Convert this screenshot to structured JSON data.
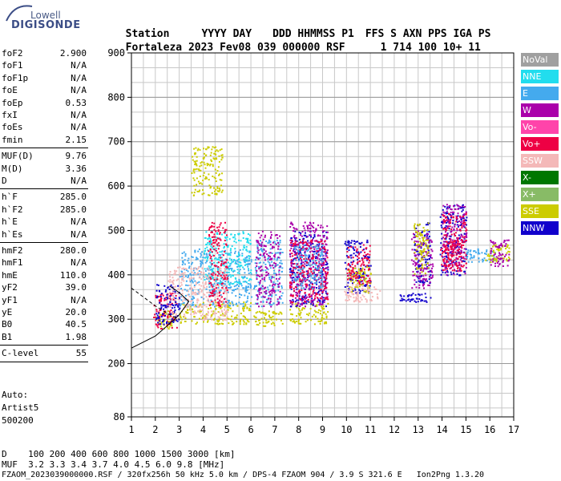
{
  "logo": {
    "brand": "Lowell",
    "product": "DIGISONDE"
  },
  "header": {
    "labels": [
      "Station",
      "YYYY",
      "DAY",
      "DDD",
      "HHMMSS",
      "P1",
      "FFS",
      "S",
      "AXN",
      "PPS",
      "IGA",
      "PS"
    ],
    "values": [
      "Fortaleza",
      "2023",
      "Fev08",
      "039",
      "000000",
      "RSF",
      "1",
      "714",
      "100",
      "10+",
      "11"
    ]
  },
  "params_group1": [
    {
      "key": "foF2",
      "value": "2.900"
    },
    {
      "key": "foF1",
      "value": "N/A"
    },
    {
      "key": "foF1p",
      "value": "N/A"
    },
    {
      "key": "foE",
      "value": "N/A"
    },
    {
      "key": "foEp",
      "value": "0.53"
    },
    {
      "key": "fxI",
      "value": "N/A"
    },
    {
      "key": "foEs",
      "value": "N/A"
    },
    {
      "key": "fmin",
      "value": "2.15"
    }
  ],
  "params_group2": [
    {
      "key": "MUF(D)",
      "value": "9.76"
    },
    {
      "key": "M(D)",
      "value": "3.36"
    },
    {
      "key": "D",
      "value": "N/A"
    }
  ],
  "params_group3": [
    {
      "key": "h`F",
      "value": "285.0"
    },
    {
      "key": "h`F2",
      "value": "285.0"
    },
    {
      "key": "h`E",
      "value": "N/A"
    },
    {
      "key": "h`Es",
      "value": "N/A"
    }
  ],
  "params_group4": [
    {
      "key": "hmF2",
      "value": "280.0"
    },
    {
      "key": "hmF1",
      "value": "N/A"
    },
    {
      "key": "hmE",
      "value": "110.0"
    },
    {
      "key": "yF2",
      "value": "39.0"
    },
    {
      "key": "yF1",
      "value": "N/A"
    },
    {
      "key": "yE",
      "value": "20.0"
    },
    {
      "key": "B0",
      "value": "40.5"
    },
    {
      "key": "B1",
      "value": "1.98"
    }
  ],
  "params_group5": [
    {
      "key": "C-level",
      "value": "55"
    }
  ],
  "autoscaling": {
    "line1": "Auto:",
    "line2": "Artist5",
    "line3": "500200"
  },
  "legend": [
    {
      "label": "NoVal",
      "color": "#a0a0a0"
    },
    {
      "label": "NNE",
      "color": "#22ddee"
    },
    {
      "label": "E",
      "color": "#44aaee"
    },
    {
      "label": "W",
      "color": "#aa00aa"
    },
    {
      "label": "Vo-",
      "color": "#ff44aa"
    },
    {
      "label": "Vo+",
      "color": "#ee0044"
    },
    {
      "label": "SSW",
      "color": "#f4b8b8"
    },
    {
      "label": "X-",
      "color": "#007700"
    },
    {
      "label": "X+",
      "color": "#88bb66"
    },
    {
      "label": "SSE",
      "color": "#cccc00"
    },
    {
      "label": "NNW",
      "color": "#1100cc"
    }
  ],
  "footer": {
    "d_label": "D",
    "d_values": [
      "100",
      "200",
      "400",
      "600",
      "800",
      "1000",
      "1500",
      "3000"
    ],
    "d_unit": "[km]",
    "muf_label": "MUF",
    "muf_values": [
      "3.2",
      "3.3",
      "3.4",
      "3.7",
      "4.0",
      "4.5",
      "6.0",
      "9.8"
    ],
    "muf_unit": "[MHz]",
    "info_line": "FZAOM_2023039000000.RSF / 320fx256h 50 kHz 5.0 km / DPS-4 FZAOM 904 / 3.9 S 321.6 E   Ion2Png 1.3.20"
  },
  "chart_data": {
    "type": "scatter",
    "xlim": [
      1,
      17
    ],
    "ylim": [
      80,
      900
    ],
    "x_ticks": [
      "1",
      "2",
      "3",
      "4",
      "5",
      "6",
      "7",
      "8",
      "9",
      "10",
      "11",
      "12",
      "13",
      "14",
      "15",
      "16",
      "17"
    ],
    "y_ticks": [
      "900",
      "800",
      "700",
      "600",
      "500",
      "400",
      "300",
      "200",
      "80"
    ],
    "y_tick_values": [
      900,
      800,
      700,
      600,
      500,
      400,
      300,
      200,
      80
    ],
    "grid": true,
    "clusters": [
      {
        "cls": "SSE",
        "x": [
          2.0,
          2.8
        ],
        "y": [
          280,
          320
        ]
      },
      {
        "cls": "Vo+",
        "x": [
          1.9,
          2.9
        ],
        "y": [
          280,
          360
        ]
      },
      {
        "cls": "NNW",
        "x": [
          2.0,
          3.0
        ],
        "y": [
          290,
          380
        ]
      },
      {
        "cls": "SSE",
        "x": [
          3.0,
          6.0
        ],
        "y": [
          290,
          340
        ]
      },
      {
        "cls": "E",
        "x": [
          3.0,
          6.0
        ],
        "y": [
          330,
          460
        ]
      },
      {
        "cls": "NNE",
        "x": [
          4.0,
          6.0
        ],
        "y": [
          380,
          500
        ]
      },
      {
        "cls": "SSE",
        "x": [
          3.5,
          4.8
        ],
        "y": [
          580,
          690
        ]
      },
      {
        "cls": "SSW",
        "x": [
          2.5,
          5.0
        ],
        "y": [
          300,
          420
        ]
      },
      {
        "cls": "Vo+",
        "x": [
          4.2,
          5.0
        ],
        "y": [
          330,
          520
        ]
      },
      {
        "cls": "SSE",
        "x": [
          6.1,
          7.3
        ],
        "y": [
          285,
          320
        ]
      },
      {
        "cls": "E",
        "x": [
          6.1,
          7.3
        ],
        "y": [
          330,
          480
        ]
      },
      {
        "cls": "W",
        "x": [
          6.2,
          7.2
        ],
        "y": [
          330,
          500
        ]
      },
      {
        "cls": "SSE",
        "x": [
          7.6,
          9.2
        ],
        "y": [
          290,
          340
        ]
      },
      {
        "cls": "NNW",
        "x": [
          7.6,
          9.2
        ],
        "y": [
          330,
          500
        ]
      },
      {
        "cls": "W",
        "x": [
          7.6,
          9.2
        ],
        "y": [
          330,
          520
        ]
      },
      {
        "cls": "Vo+",
        "x": [
          7.6,
          9.2
        ],
        "y": [
          340,
          480
        ]
      },
      {
        "cls": "E",
        "x": [
          7.8,
          9.0
        ],
        "y": [
          370,
          470
        ]
      },
      {
        "cls": "NNW",
        "x": [
          9.9,
          11.0
        ],
        "y": [
          360,
          480
        ]
      },
      {
        "cls": "SSE",
        "x": [
          10.0,
          11.0
        ],
        "y": [
          360,
          420
        ]
      },
      {
        "cls": "SSW",
        "x": [
          9.9,
          11.4
        ],
        "y": [
          340,
          380
        ]
      },
      {
        "cls": "Vo+",
        "x": [
          10.0,
          11.0
        ],
        "y": [
          380,
          470
        ]
      },
      {
        "cls": "NNW",
        "x": [
          12.2,
          13.5
        ],
        "y": [
          340,
          360
        ]
      },
      {
        "cls": "NNW",
        "x": [
          12.8,
          13.5
        ],
        "y": [
          380,
          520
        ]
      },
      {
        "cls": "W",
        "x": [
          12.7,
          13.6
        ],
        "y": [
          370,
          500
        ]
      },
      {
        "cls": "SSE",
        "x": [
          12.8,
          13.4
        ],
        "y": [
          400,
          520
        ]
      },
      {
        "cls": "NNW",
        "x": [
          13.9,
          15.0
        ],
        "y": [
          400,
          560
        ]
      },
      {
        "cls": "W",
        "x": [
          14.0,
          15.0
        ],
        "y": [
          400,
          560
        ]
      },
      {
        "cls": "Vo+",
        "x": [
          14.0,
          15.0
        ],
        "y": [
          420,
          540
        ]
      },
      {
        "cls": "E",
        "x": [
          15.0,
          16.2
        ],
        "y": [
          430,
          460
        ]
      },
      {
        "cls": "SSE",
        "x": [
          15.8,
          16.8
        ],
        "y": [
          430,
          470
        ]
      },
      {
        "cls": "W",
        "x": [
          16.0,
          16.8
        ],
        "y": [
          420,
          480
        ]
      },
      {
        "cls": "Vo+",
        "x": [
          13.9,
          14.8
        ],
        "y": [
          410,
          480
        ]
      }
    ],
    "profile_line": [
      [
        1,
        235
      ],
      [
        2,
        262
      ],
      [
        2.6,
        290
      ],
      [
        3.0,
        310
      ],
      [
        3.4,
        340
      ],
      [
        3.0,
        360
      ],
      [
        2.6,
        375
      ]
    ],
    "dashed_line": [
      [
        1,
        370
      ],
      [
        2,
        330
      ],
      [
        2.6,
        310
      ],
      [
        3.0,
        300
      ]
    ]
  }
}
